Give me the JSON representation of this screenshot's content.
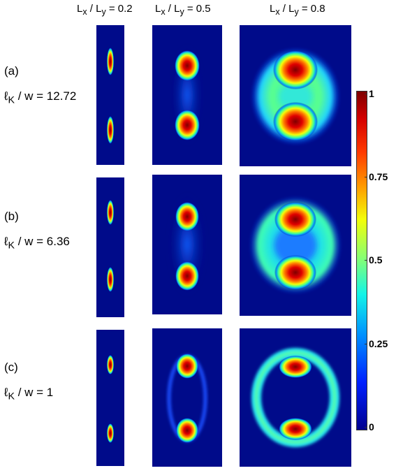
{
  "columns": [
    {
      "label": "L",
      "sub1": "x",
      "mid": " / L",
      "sub2": "y",
      "value": " = 0.2"
    },
    {
      "label": "L",
      "sub1": "x",
      "mid": " / L",
      "sub2": "y",
      "value": " = 0.5"
    },
    {
      "label": "L",
      "sub1": "x",
      "mid": " / L",
      "sub2": "y",
      "value": " = 0.8"
    }
  ],
  "rows": [
    {
      "tag": "(a)",
      "ell": "ℓ",
      "sub": "K",
      "text": "/ w = 12.72"
    },
    {
      "tag": "(b)",
      "ell": "ℓ",
      "sub": "K",
      "text": "/ w = 6.36"
    },
    {
      "tag": "(c)",
      "ell": "ℓ",
      "sub": "K",
      "text": "/ w = 1"
    }
  ],
  "colorbar": {
    "ticks": [
      "1",
      "0.75",
      "0.5",
      "0.25",
      "0"
    ],
    "colormap": "jet",
    "colors": [
      "#7f0000",
      "#ff3b00",
      "#f2ff0a",
      "#12f4e8",
      "#0020ff",
      "#00008f"
    ]
  },
  "background_color": "#000b8a"
}
